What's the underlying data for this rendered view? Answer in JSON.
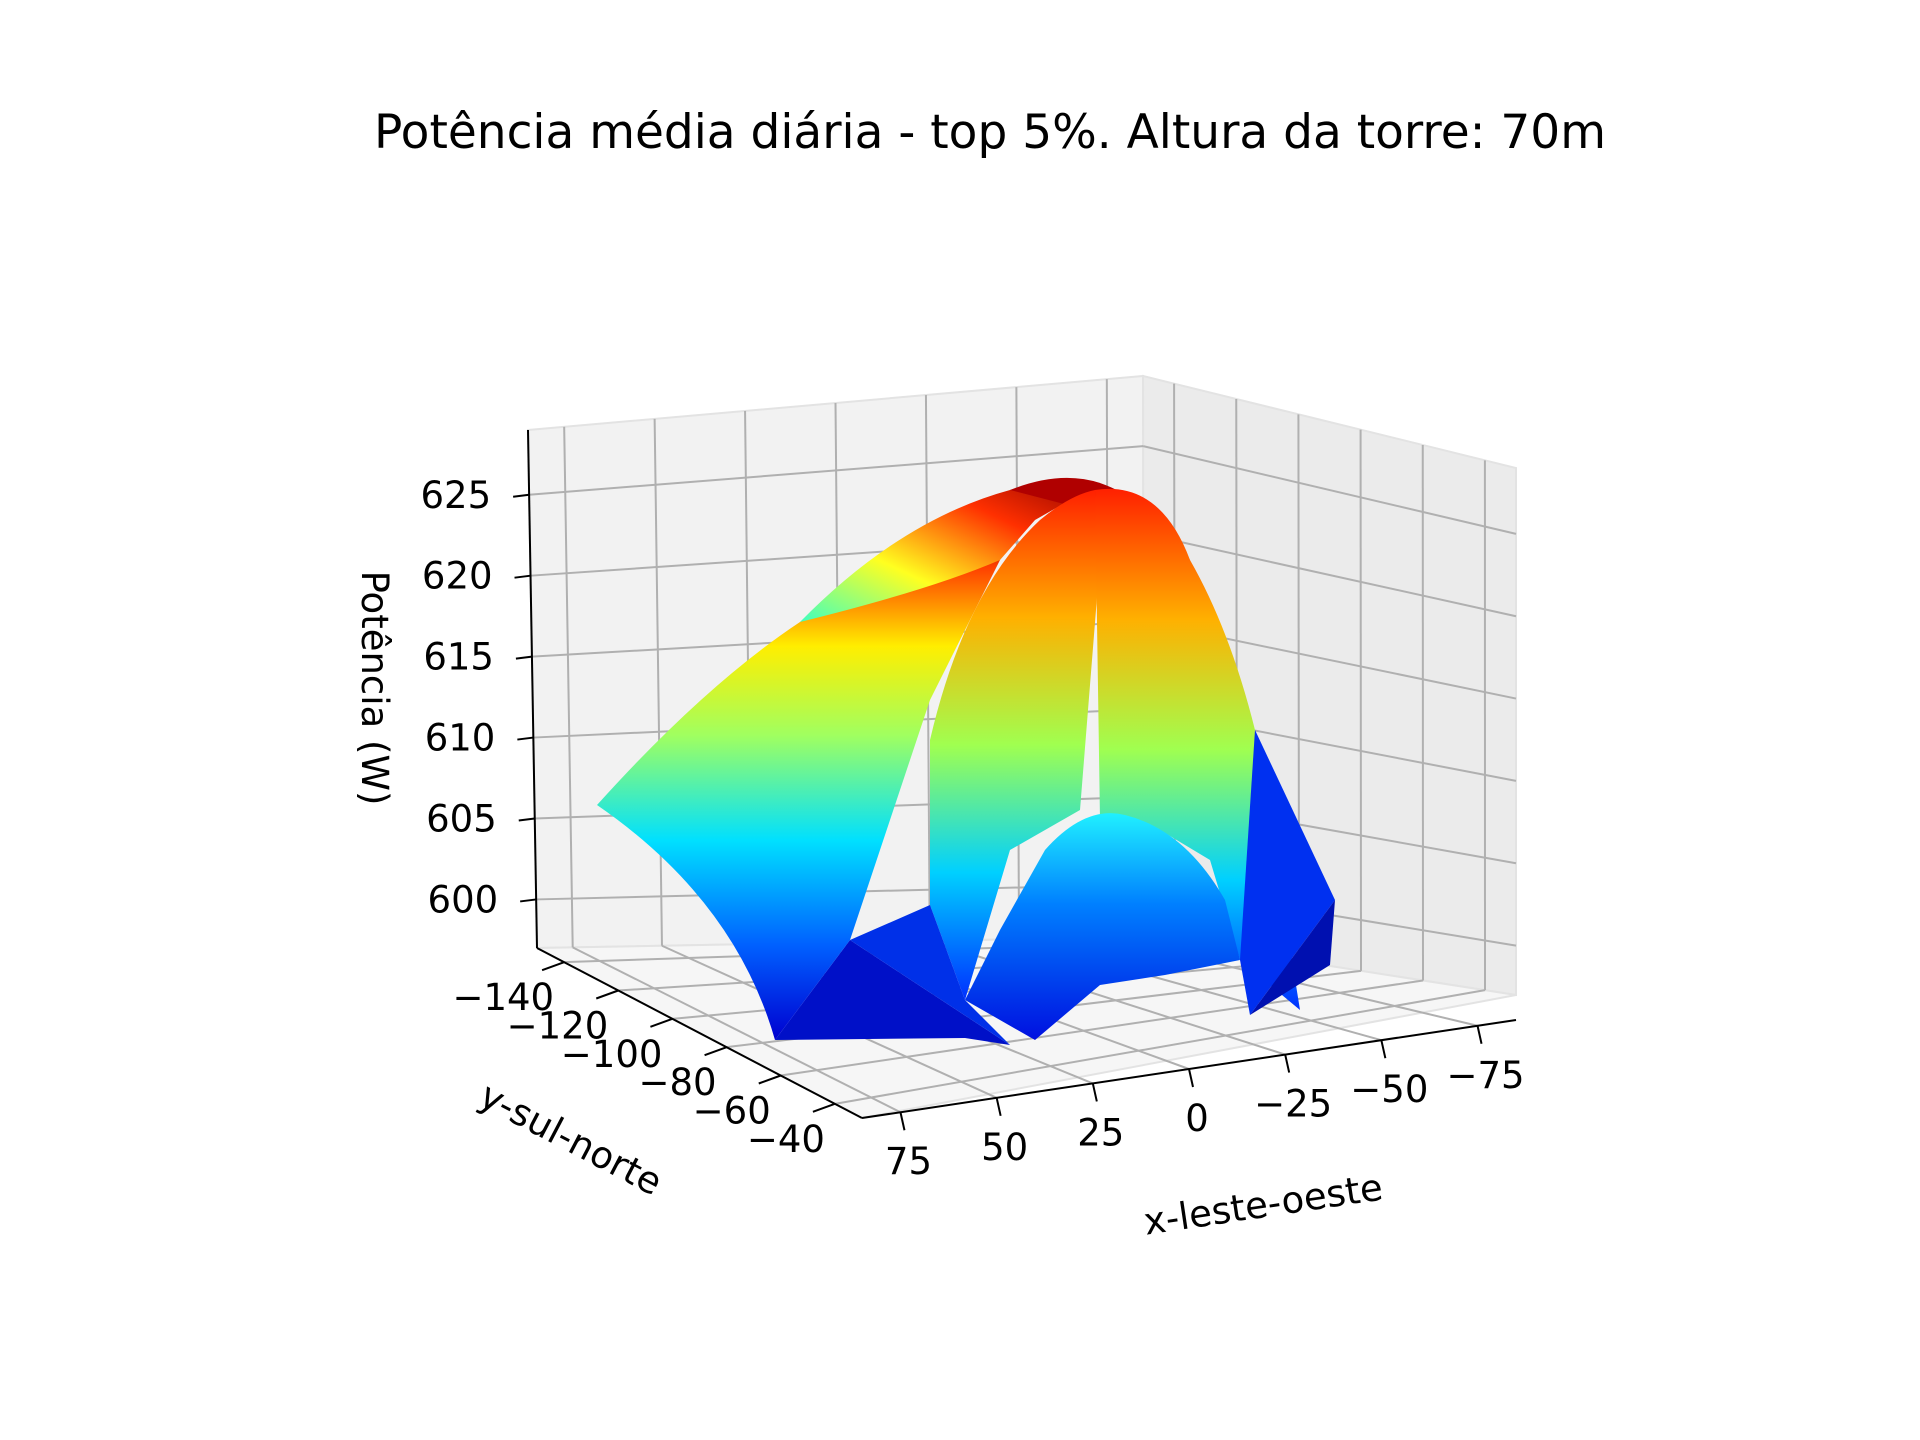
{
  "chart_data": {
    "type": "surface3d",
    "title": "Potência média diária - top 5%. Altura da torre: 70m",
    "xlabel": "x-leste-oeste",
    "ylabel": "y-sul-norte",
    "zlabel": "Potência (W)",
    "x_ticks": [
      75,
      50,
      25,
      0,
      -25,
      -50,
      -75
    ],
    "x_tick_labels": [
      "75",
      "50",
      "25",
      "0",
      "−25",
      "−50",
      "−75"
    ],
    "y_ticks": [
      -140,
      -120,
      -100,
      -80,
      -60,
      -40
    ],
    "y_tick_labels": [
      "−140",
      "−120",
      "−100",
      "−80",
      "−60",
      "−40"
    ],
    "z_ticks": [
      600,
      605,
      610,
      615,
      620,
      625
    ],
    "z_tick_labels": [
      "600",
      "605",
      "610",
      "615",
      "620",
      "625"
    ],
    "xlim": [
      -85,
      85
    ],
    "ylim": [
      -150,
      -30
    ],
    "zlim": [
      597,
      629
    ],
    "z_peak": 627,
    "colormap": "jet",
    "grid": true,
    "surface_samples": [
      {
        "x": 80,
        "y": -145,
        "z": 606
      },
      {
        "x": 65,
        "y": -85,
        "z": 620
      },
      {
        "x": 35,
        "y": -40,
        "z": 627
      },
      {
        "x": 0,
        "y": -50,
        "z": 622
      },
      {
        "x": 0,
        "y": -90,
        "z": 609
      },
      {
        "x": -40,
        "y": -130,
        "z": 599
      }
    ]
  }
}
